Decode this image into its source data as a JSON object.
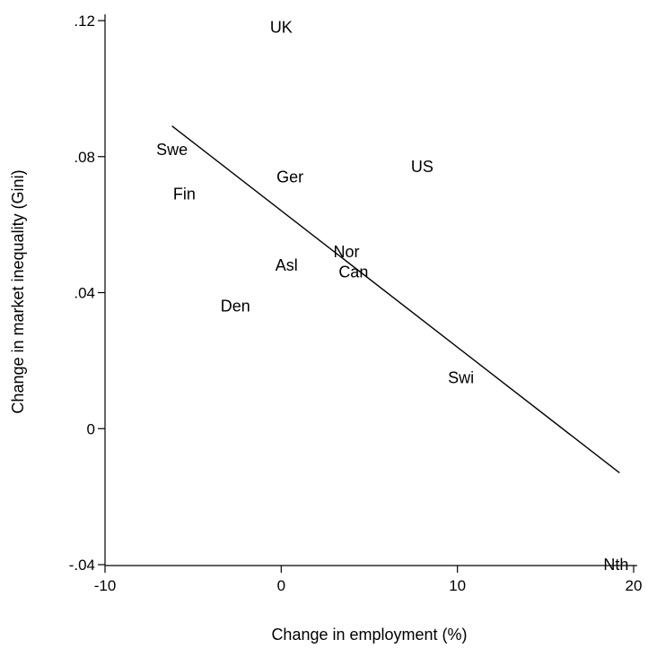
{
  "chart_data": {
    "type": "scatter",
    "marker": "label",
    "xlabel": "Change in employment (%)",
    "ylabel": "Change in market inequality (Gini)",
    "xlim": [
      -10,
      20
    ],
    "ylim": [
      -0.04,
      0.12
    ],
    "x_ticks": [
      -10,
      0,
      10,
      20
    ],
    "x_tick_labels": [
      "-10",
      "0",
      "10",
      "20"
    ],
    "y_ticks": [
      -0.04,
      0,
      0.04,
      0.08,
      0.12
    ],
    "y_tick_labels": [
      "-.04",
      "0",
      ".04",
      ".08",
      ".12"
    ],
    "grid": false,
    "points": [
      {
        "label": "UK",
        "x": 0,
        "y": 0.118
      },
      {
        "label": "Swe",
        "x": -6.2,
        "y": 0.082
      },
      {
        "label": "Fin",
        "x": -5.5,
        "y": 0.069
      },
      {
        "label": "Ger",
        "x": 0.5,
        "y": 0.074
      },
      {
        "label": "US",
        "x": 8,
        "y": 0.077
      },
      {
        "label": "Nor",
        "x": 3.7,
        "y": 0.052
      },
      {
        "label": "Asl",
        "x": 0.3,
        "y": 0.048
      },
      {
        "label": "Can",
        "x": 4.1,
        "y": 0.046
      },
      {
        "label": "Den",
        "x": -2.6,
        "y": 0.036
      },
      {
        "label": "Swi",
        "x": 10.2,
        "y": 0.015
      },
      {
        "label": "Nth",
        "x": 19,
        "y": -0.04
      }
    ],
    "fit_line": {
      "x": [
        -6.2,
        19.2
      ],
      "y": [
        0.089,
        -0.013
      ]
    }
  }
}
